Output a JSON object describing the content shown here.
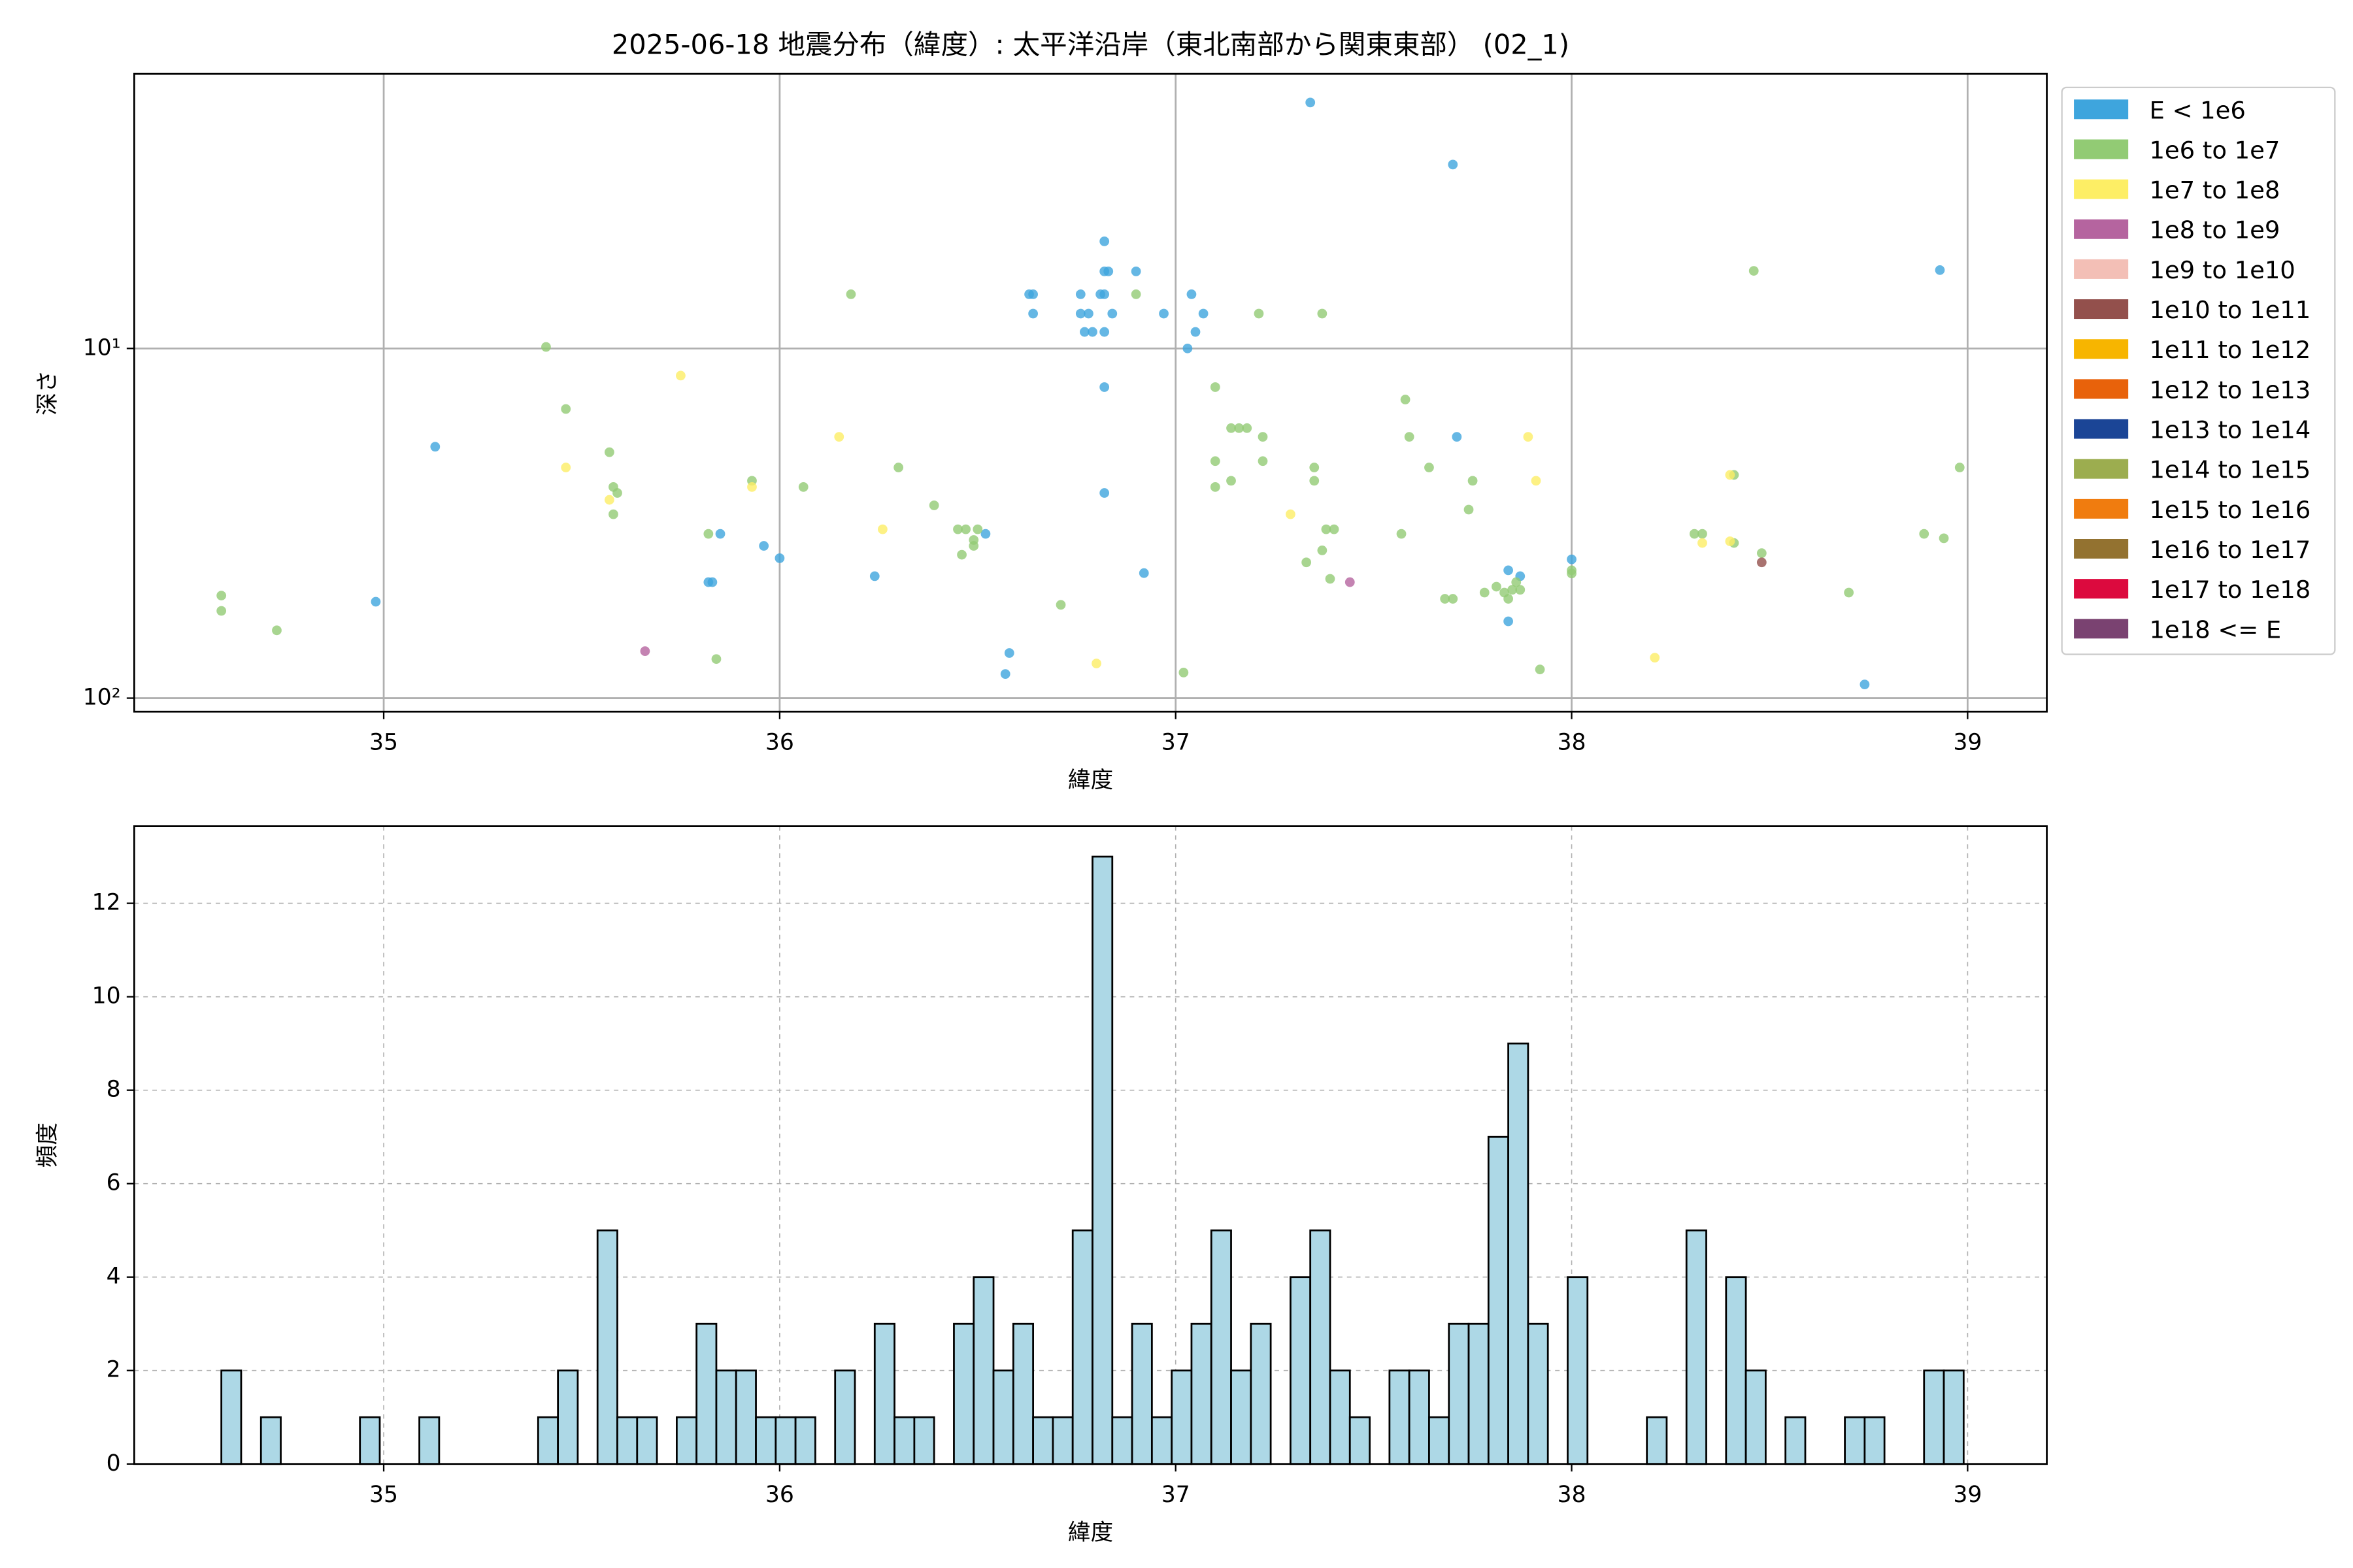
{
  "chart_data": [
    {
      "type": "scatter",
      "title": "2025-06-18 地震分布（緯度）: 太平洋沿岸（東北南部から関東東部） (02_1)",
      "xlabel": "緯度",
      "ylabel": "深さ",
      "xlim": [
        34.37,
        39.2
      ],
      "ylim": [
        109.3,
        1.64
      ],
      "yscale": "log",
      "xticks": [
        35,
        36,
        37,
        38,
        39
      ],
      "yticks": [
        {
          "value": 10,
          "label": "10¹"
        },
        {
          "value": 100,
          "label": "10²"
        }
      ],
      "grid": true,
      "legend": "outside right",
      "series": [
        {
          "name": "E < 1e6",
          "color": "#3ea5dd",
          "x": [
            35.13,
            34.98,
            37.34,
            37.7,
            38.93,
            36.63,
            36.64,
            36.64,
            36.76,
            36.76,
            36.78,
            36.77,
            36.79,
            36.82,
            36.82,
            36.82,
            36.83,
            36.81,
            36.82,
            36.84,
            36.9,
            36.97,
            37.04,
            37.07,
            37.05,
            37.03,
            36.82,
            36.82,
            36.92,
            35.85,
            35.82,
            35.83,
            35.96,
            36.0,
            36.24,
            36.52,
            36.58,
            36.57,
            37.71,
            37.84,
            37.84,
            37.87,
            38.0,
            38.74
          ],
          "values": [
            19.1,
            53,
            1.98,
            2.98,
            5.97,
            7.0,
            7.95,
            7.0,
            7.0,
            7.95,
            7.95,
            8.97,
            8.97,
            4.94,
            6.02,
            7.0,
            6.02,
            7.0,
            8.97,
            7.95,
            6.02,
            7.95,
            7.0,
            7.95,
            8.97,
            10.0,
            12.9,
            25.9,
            43.9,
            33.9,
            46.6,
            46.6,
            36.7,
            39.8,
            44.8,
            33.9,
            74.3,
            85.3,
            17.9,
            43.1,
            60.3,
            44.8,
            40.1,
            91.4
          ]
        },
        {
          "name": "1e6 to 1e7",
          "color": "#92cb74",
          "x": [
            34.59,
            34.59,
            34.73,
            35.41,
            35.46,
            35.57,
            35.58,
            35.59,
            35.58,
            35.82,
            35.84,
            35.93,
            36.06,
            36.18,
            36.3,
            36.39,
            36.45,
            36.47,
            36.49,
            36.49,
            36.5,
            36.46,
            36.71,
            36.9,
            37.02,
            37.1,
            37.1,
            37.1,
            37.14,
            37.14,
            37.16,
            37.18,
            37.21,
            37.22,
            37.22,
            37.33,
            37.35,
            37.35,
            37.37,
            37.37,
            37.38,
            37.4,
            37.39,
            37.58,
            37.59,
            37.57,
            37.64,
            37.68,
            37.7,
            37.75,
            37.74,
            37.78,
            37.81,
            37.83,
            37.85,
            37.87,
            37.86,
            37.84,
            37.92,
            38.0,
            38.0,
            38.31,
            38.33,
            38.41,
            38.41,
            38.48,
            38.46,
            38.7,
            38.89,
            38.94,
            38.98
          ],
          "values": [
            50.9,
            56.3,
            64.0,
            9.9,
            14.9,
            19.8,
            24.9,
            25.9,
            29.8,
            33.9,
            77.3,
            23.9,
            24.9,
            7.0,
            21.9,
            28.1,
            32.9,
            32.9,
            35.3,
            36.7,
            32.9,
            38.9,
            54.1,
            7.0,
            84.5,
            12.9,
            21.0,
            24.9,
            23.9,
            16.9,
            16.9,
            16.9,
            7.95,
            17.9,
            21.0,
            40.9,
            23.9,
            21.9,
            37.8,
            7.95,
            32.9,
            32.9,
            45.6,
            14.0,
            17.9,
            33.9,
            21.9,
            52.0,
            52.0,
            23.9,
            28.9,
            49.9,
            48.0,
            49.9,
            49.0,
            49.0,
            46.6,
            52.0,
            82.8,
            43.1,
            44.0,
            33.9,
            33.9,
            23.0,
            36.0,
            38.5,
            6.0,
            49.9,
            33.9,
            34.9,
            21.9
          ]
        },
        {
          "name": "1e7 to 1e8",
          "color": "#fdee65",
          "x": [
            35.46,
            35.57,
            35.75,
            35.93,
            36.15,
            36.26,
            36.8,
            37.29,
            37.89,
            37.91,
            38.21,
            38.33,
            38.4,
            38.4
          ],
          "values": [
            21.9,
            27.1,
            11.96,
            24.9,
            17.9,
            32.9,
            79.6,
            29.8,
            17.9,
            23.9,
            76.6,
            36.0,
            23.0,
            35.6
          ]
        },
        {
          "name": "1e8 to 1e9",
          "color": "#b5649f",
          "x": [
            35.66,
            37.44
          ],
          "values": [
            73.4,
            46.6
          ]
        },
        {
          "name": "1e9 to 1e10",
          "color": "#f3bfb6",
          "x": [],
          "values": []
        },
        {
          "name": "1e10 to 1e11",
          "color": "#93504c",
          "x": [
            38.48
          ],
          "values": [
            40.9
          ]
        },
        {
          "name": "1e11 to 1e12",
          "color": "#f7b500",
          "x": [],
          "values": []
        },
        {
          "name": "1e12 to 1e13",
          "color": "#e8620b",
          "x": [],
          "values": []
        },
        {
          "name": "1e13 to 1e14",
          "color": "#1b4596",
          "x": [],
          "values": []
        },
        {
          "name": "1e14 to 1e15",
          "color": "#9cad4f",
          "x": [],
          "values": []
        },
        {
          "name": "1e15 to 1e16",
          "color": "#f07c0f",
          "x": [],
          "values": []
        },
        {
          "name": "1e16 to 1e17",
          "color": "#937230",
          "x": [],
          "values": []
        },
        {
          "name": "1e17 to 1e18",
          "color": "#dc0a3e",
          "x": [],
          "values": []
        },
        {
          "name": "1e18 <= E",
          "color": "#7a4271",
          "x": [],
          "values": []
        }
      ]
    },
    {
      "type": "histogram",
      "xlabel": "緯度",
      "ylabel": "頻度",
      "xlim": [
        34.37,
        39.2
      ],
      "ylim": [
        0,
        13.65
      ],
      "xticks": [
        35,
        36,
        37,
        38,
        39
      ],
      "yticks": [
        0,
        2,
        4,
        6,
        8,
        10,
        12
      ],
      "grid": true,
      "color": "#add8e6",
      "edgecolor": "#000000",
      "bins": [
        34.59,
        34.64,
        34.69,
        34.74,
        34.79,
        34.84,
        34.89,
        34.94,
        34.99,
        35.04,
        35.09,
        35.14,
        35.19,
        35.24,
        35.29,
        35.34,
        35.39,
        35.44,
        35.49,
        35.54,
        35.59,
        35.64,
        35.69,
        35.74,
        35.79,
        35.84,
        35.89,
        35.94,
        35.99,
        36.04,
        36.09,
        36.14,
        36.19,
        36.24,
        36.29,
        36.34,
        36.39,
        36.44,
        36.49,
        36.54,
        36.59,
        36.64,
        36.69,
        36.74,
        36.79,
        36.84,
        36.89,
        36.94,
        36.99,
        37.04,
        37.09,
        37.14,
        37.19,
        37.24,
        37.29,
        37.34,
        37.39,
        37.44,
        37.49,
        37.54,
        37.59,
        37.64,
        37.69,
        37.74,
        37.79,
        37.84,
        37.89,
        37.94,
        37.99,
        38.04,
        38.09,
        38.14,
        38.19,
        38.24,
        38.29,
        38.34,
        38.39,
        38.44,
        38.49,
        38.54,
        38.59,
        38.64,
        38.69,
        38.74,
        38.79,
        38.84,
        38.89,
        38.94,
        38.99
      ],
      "values": [
        2,
        0,
        1,
        0,
        0,
        0,
        0,
        1,
        0,
        0,
        1,
        0,
        0,
        0,
        0,
        0,
        1,
        2,
        0,
        5,
        1,
        1,
        0,
        1,
        3,
        2,
        2,
        1,
        1,
        1,
        0,
        2,
        0,
        3,
        1,
        1,
        0,
        3,
        4,
        2,
        3,
        1,
        1,
        5,
        13,
        1,
        3,
        1,
        2,
        3,
        5,
        2,
        3,
        0,
        4,
        5,
        2,
        1,
        0,
        2,
        2,
        1,
        3,
        3,
        7,
        9,
        3,
        0,
        4,
        0,
        0,
        0,
        1,
        0,
        5,
        0,
        4,
        2,
        0,
        1,
        0,
        0,
        1,
        1,
        0,
        0,
        2,
        2
      ]
    }
  ]
}
